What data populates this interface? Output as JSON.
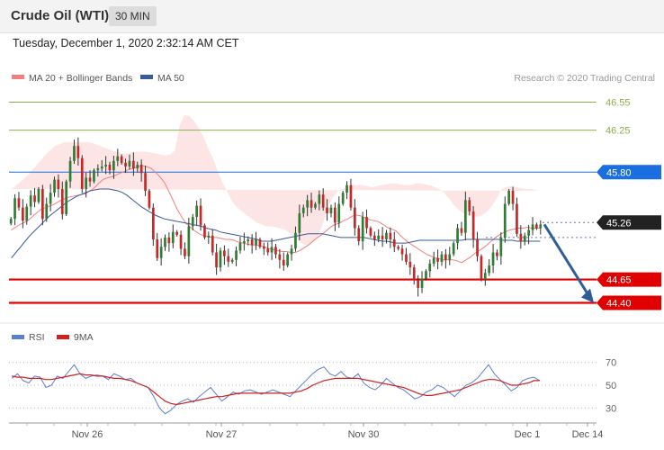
{
  "header": {
    "instrument": "Crude Oil (WTI)",
    "timeframe": "30 MIN",
    "datetime": "Tuesday, December 1, 2020 2:32:14 AM CET"
  },
  "legend": {
    "ma20": "MA 20 + Bollinger Bands",
    "ma50": "MA 50",
    "credit": "Research © 2020 Trading Central",
    "rsi": "RSI",
    "rsi_ma": "9MA"
  },
  "colors": {
    "ma20": "#f08080",
    "ma50": "#3a5a9c",
    "bollinger_fill": "#fde0e0",
    "candle_up": "#2e7d32",
    "candle_down": "#c62828",
    "resistance_green": "#8ab04a",
    "pivot_blue": "#1a6fe0",
    "support_red": "#e00000",
    "current_price": "#222222",
    "arrow": "#2f5d9a",
    "rsi": "#5b7fd0",
    "rsi_ma": "#d02020"
  },
  "chart_data": [
    {
      "type": "candlestick",
      "ylim": [
        44.27,
        46.68
      ],
      "x_ticks": [
        "Nov 26",
        "Nov 27",
        "Nov 30",
        "Dec 1",
        "Dec 14"
      ],
      "levels": [
        {
          "price": 46.55,
          "label": "46.55",
          "style": "resistance"
        },
        {
          "price": 46.25,
          "label": "46.25",
          "style": "resistance"
        },
        {
          "price": 45.8,
          "label": "45.80",
          "style": "pivot"
        },
        {
          "price": 45.26,
          "label": "45.26",
          "style": "current"
        },
        {
          "price": 44.65,
          "label": "44.65",
          "style": "support"
        },
        {
          "price": 44.4,
          "label": "44.40",
          "style": "support"
        }
      ],
      "forecast_arrow": {
        "from": 45.24,
        "to": 44.4
      },
      "closes": [
        45.3,
        45.52,
        45.42,
        45.28,
        45.43,
        45.55,
        45.48,
        45.62,
        45.3,
        45.46,
        45.58,
        45.72,
        45.62,
        45.35,
        45.7,
        45.92,
        46.08,
        45.95,
        45.62,
        45.74,
        45.7,
        45.82,
        45.84,
        45.86,
        45.88,
        45.82,
        45.92,
        45.97,
        45.9,
        45.86,
        45.92,
        45.84,
        45.88,
        45.79,
        45.6,
        45.42,
        45.08,
        44.88,
        45.0,
        45.1,
        45.04,
        45.16,
        45.13,
        44.98,
        44.9,
        45.22,
        45.32,
        45.44,
        45.23,
        45.1,
        45.12,
        44.94,
        44.78,
        44.96,
        44.9,
        44.84,
        44.86,
        44.96,
        45.04,
        45.06,
        45.08,
        45.02,
        45.08,
        45.0,
        44.98,
        44.94,
        45.0,
        44.92,
        44.86,
        44.8,
        44.92,
        44.98,
        45.15,
        45.36,
        45.42,
        45.5,
        45.42,
        45.46,
        45.56,
        45.42,
        45.36,
        45.42,
        45.26,
        45.46,
        45.58,
        45.66,
        45.42,
        45.2,
        45.06,
        45.32,
        45.2,
        45.12,
        45.08,
        45.12,
        45.08,
        45.15,
        45.08,
        45.0,
        44.98,
        44.92,
        44.84,
        44.78,
        44.64,
        44.56,
        44.66,
        44.74,
        44.82,
        44.88,
        44.84,
        44.92,
        44.86,
        44.92,
        45.04,
        45.2,
        45.15,
        45.5,
        45.38,
        45.08,
        44.9,
        44.65,
        44.72,
        44.8,
        44.94,
        44.9,
        45.1,
        45.46,
        45.6,
        45.46,
        45.14,
        45.06,
        45.12,
        45.18,
        45.24,
        45.2,
        45.24
      ],
      "ma20": [
        45.18,
        45.21,
        45.24,
        45.26,
        45.29,
        45.33,
        45.37,
        45.41,
        45.42,
        45.44,
        45.46,
        45.49,
        45.51,
        45.53,
        45.54,
        45.55,
        45.56,
        45.57,
        45.6,
        45.63,
        45.68,
        45.72,
        45.74,
        45.75,
        45.77,
        45.79,
        45.81,
        45.83,
        45.84,
        45.86,
        45.87,
        45.86,
        45.84,
        45.8,
        45.75,
        45.69,
        45.6,
        45.5,
        45.4,
        45.32,
        45.25,
        45.21,
        45.17,
        45.14,
        45.12,
        45.11,
        45.1,
        45.1,
        45.09,
        45.08,
        45.08,
        45.07,
        45.05,
        45.04,
        45.03,
        45.02,
        45.02,
        45.01,
        45.0,
        44.98,
        44.97,
        44.96,
        44.95,
        44.95,
        44.94,
        44.94,
        44.96,
        44.99,
        45.02,
        45.06,
        45.1,
        45.13,
        45.17,
        45.21,
        45.24,
        45.25,
        45.28,
        45.3,
        45.33,
        45.34,
        45.33,
        45.31,
        45.29,
        45.28,
        45.27,
        45.24,
        45.21,
        45.19,
        45.17,
        45.12,
        45.08,
        45.04,
        45.01,
        44.98,
        44.95,
        44.92,
        44.9,
        44.88,
        44.87,
        44.86,
        44.86,
        44.86,
        44.85,
        44.83,
        44.86,
        44.89,
        44.93,
        44.96,
        44.99,
        45.03,
        45.07,
        45.11,
        45.14,
        45.16,
        45.18,
        45.19,
        45.2,
        45.2,
        45.21,
        45.2,
        45.2,
        45.2
      ],
      "bb_upper": [
        45.62,
        45.66,
        45.7,
        45.75,
        45.8,
        45.86,
        45.92,
        45.98,
        46.03,
        46.08,
        46.1,
        46.12,
        46.12,
        46.12,
        46.12,
        46.12,
        46.12,
        46.11,
        46.09,
        46.07,
        46.05,
        46.03,
        46.02,
        46.0,
        46.0,
        46.01,
        46.02,
        46.02,
        46.02,
        46.01,
        46.0,
        45.99,
        45.98,
        45.99,
        46.03,
        46.3,
        46.41,
        46.4,
        46.35,
        46.27,
        46.17,
        46.05,
        45.94,
        45.8,
        45.68,
        45.58,
        45.48,
        45.42,
        45.38,
        45.34,
        45.3,
        45.26,
        45.24,
        45.22,
        45.22,
        45.21,
        45.2,
        45.18,
        45.14,
        45.1,
        45.05,
        45.02,
        45.02,
        45.06,
        45.14,
        45.28,
        45.44,
        45.54,
        45.6,
        45.62,
        45.64,
        45.66,
        45.66,
        45.66,
        45.65,
        45.64,
        45.65,
        45.66,
        45.67,
        45.68,
        45.68,
        45.67,
        45.66,
        45.66,
        45.68,
        45.68,
        45.67,
        45.66,
        45.64,
        45.62,
        45.58,
        45.52,
        45.45,
        45.4,
        45.36,
        45.34,
        45.32,
        45.32,
        45.34,
        45.38,
        45.44,
        45.52,
        45.62,
        45.64,
        45.65,
        45.64,
        45.63,
        45.62,
        45.62,
        45.61,
        45.6
      ],
      "bb_lower": [
        44.75,
        44.76,
        44.79,
        44.82,
        44.86,
        44.92,
        44.98,
        45.04,
        45.1,
        45.16,
        45.2,
        45.24,
        45.27,
        45.29,
        45.3,
        45.31,
        45.3,
        45.28,
        45.25,
        45.2,
        45.15,
        45.08,
        44.96,
        44.84,
        44.72,
        44.66,
        44.64,
        44.63,
        44.62,
        44.62,
        44.62,
        44.62,
        44.64,
        44.67,
        44.7,
        44.73,
        44.76,
        44.8,
        44.83,
        44.84,
        44.85,
        44.86,
        44.87,
        44.86,
        44.82,
        44.76,
        44.7,
        44.66,
        44.63,
        44.62,
        44.62,
        44.62,
        44.63,
        44.64,
        44.64,
        44.64,
        44.64,
        44.63,
        44.62,
        44.6,
        44.59,
        44.58,
        44.57,
        44.56,
        44.55,
        44.55,
        44.56,
        44.57,
        44.58,
        44.58,
        44.57,
        44.55,
        44.53,
        44.52,
        44.53,
        44.56,
        44.6,
        44.64,
        44.66,
        44.67,
        44.68,
        44.68,
        44.68,
        44.66,
        44.64,
        44.62,
        44.62,
        44.62,
        44.63,
        44.63,
        44.63
      ],
      "ma50": [
        44.88,
        44.94,
        45.0,
        45.06,
        45.12,
        45.17,
        45.22,
        45.27,
        45.32,
        45.36,
        45.4,
        45.44,
        45.48,
        45.51,
        45.54,
        45.56,
        45.58,
        45.6,
        45.61,
        45.62,
        45.62,
        45.62,
        45.61,
        45.6,
        45.58,
        45.55,
        45.51,
        45.47,
        45.43,
        45.4,
        45.37,
        45.34,
        45.32,
        45.3,
        45.29,
        45.28,
        45.27,
        45.26,
        45.25,
        45.24,
        45.23,
        45.22,
        45.2,
        45.19,
        45.18,
        45.16,
        45.15,
        45.14,
        45.13,
        45.12,
        45.11,
        45.1,
        45.09,
        45.08,
        45.06,
        45.06,
        45.06,
        45.07,
        45.08,
        45.09,
        45.1,
        45.11,
        45.12,
        45.13,
        45.14,
        45.14,
        45.14,
        45.14,
        45.13,
        45.12,
        45.11,
        45.1,
        45.1,
        45.1,
        45.1,
        45.1,
        45.1,
        45.09,
        45.08,
        45.07,
        45.06,
        45.06,
        45.05,
        45.04,
        45.04,
        45.04,
        45.05,
        45.06,
        45.07,
        45.07,
        45.07,
        45.07,
        45.07,
        45.07,
        45.07,
        45.07,
        45.07,
        45.07,
        45.08,
        45.08,
        45.08,
        45.08,
        45.08,
        45.08,
        45.08,
        45.08,
        45.07,
        45.07,
        45.07,
        45.06,
        45.06,
        45.06,
        45.06,
        45.06,
        45.06
      ]
    },
    {
      "type": "line",
      "ylim": [
        20,
        80
      ],
      "y_ticks": [
        "70",
        "50",
        "30"
      ],
      "series": [
        {
          "name": "RSI",
          "values": [
            56,
            60,
            54,
            52,
            58,
            57,
            48,
            50,
            58,
            56,
            62,
            68,
            60,
            56,
            58,
            59,
            58,
            55,
            60,
            58,
            55,
            56,
            52,
            50,
            48,
            40,
            30,
            25,
            28,
            33,
            36,
            38,
            35,
            40,
            44,
            48,
            42,
            36,
            40,
            44,
            42,
            45,
            46,
            44,
            42,
            44,
            46,
            44,
            42,
            40,
            45,
            50,
            55,
            60,
            64,
            66,
            60,
            58,
            62,
            57,
            56,
            60,
            52,
            48,
            46,
            50,
            56,
            52,
            48,
            46,
            42,
            38,
            40,
            44,
            46,
            50,
            48,
            44,
            40,
            45,
            50,
            52,
            56,
            62,
            68,
            60,
            55,
            50,
            45,
            48,
            54,
            56,
            57,
            54
          ]
        },
        {
          "name": "9MA",
          "values": [
            58,
            57,
            57,
            56,
            56,
            56,
            55,
            55,
            56,
            57,
            58,
            59,
            60,
            59,
            59,
            58,
            58,
            57,
            56,
            56,
            55,
            54,
            52,
            50,
            48,
            44,
            40,
            36,
            34,
            33,
            34,
            35,
            36,
            37,
            38,
            39,
            40,
            40,
            41,
            42,
            43,
            43,
            43,
            43,
            43,
            43,
            43,
            43,
            43,
            43,
            44,
            45,
            47,
            50,
            52,
            54,
            55,
            56,
            56,
            56,
            56,
            56,
            55,
            54,
            53,
            52,
            51,
            50,
            49,
            48,
            46,
            44,
            42,
            41,
            41,
            42,
            43,
            44,
            45,
            46,
            48,
            50,
            52,
            54,
            55,
            55,
            54,
            52,
            50,
            50,
            51,
            52,
            54,
            54
          ]
        }
      ]
    }
  ]
}
